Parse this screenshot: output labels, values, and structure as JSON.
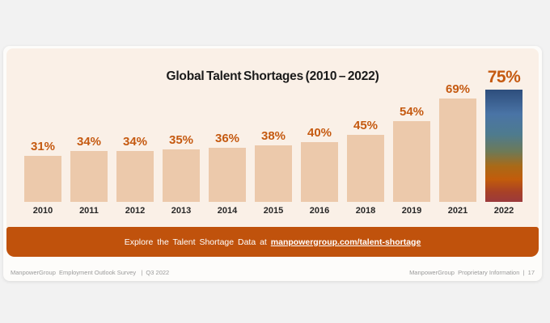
{
  "colors": {
    "page_background": "#f2f2f2",
    "slide_background": "#fdfcfa",
    "panel_background": "#faf0e7"
  },
  "chart_data": {
    "type": "bar",
    "title": "Global Talent Shortages (2010 – 2022)",
    "categories": [
      "2010",
      "2011",
      "2012",
      "2013",
      "2014",
      "2015",
      "2016",
      "2018",
      "2019",
      "2021",
      "2022"
    ],
    "values": [
      31,
      34,
      34,
      35,
      36,
      38,
      40,
      45,
      54,
      69,
      75
    ],
    "unit": "%",
    "ylim": [
      0,
      100
    ],
    "grid": false,
    "legend": false,
    "bar_color": "#ecc9ab",
    "value_label_color": "#c55a11",
    "category_label_color": "#262626",
    "highlight_category": "2022",
    "highlight_gradient": [
      {
        "color": "#2e4e7c",
        "stop": 0
      },
      {
        "color": "#4a74a6",
        "stop": 22
      },
      {
        "color": "#4e7b8e",
        "stop": 40
      },
      {
        "color": "#6d7a58",
        "stop": 55
      },
      {
        "color": "#a96a18",
        "stop": 68
      },
      {
        "color": "#c25c0b",
        "stop": 80
      },
      {
        "color": "#a84127",
        "stop": 91
      },
      {
        "color": "#9c3a3c",
        "stop": 100
      }
    ]
  },
  "banner": {
    "text_prefix": "Explore the Talent Shortage Data at ",
    "link_text": "manpowergroup.com/talent-shortage",
    "background": "#c0520c",
    "text_color": "#ffffff"
  },
  "footer": {
    "left": "ManpowerGroup  Employment Outlook Survey   |  Q3 2022",
    "right": "ManpowerGroup  Proprietary Information  |  17"
  }
}
